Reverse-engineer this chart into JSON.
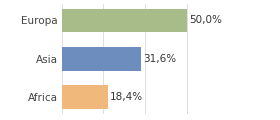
{
  "categories": [
    "Africa",
    "Asia",
    "Europa"
  ],
  "values": [
    18.4,
    31.6,
    50.0
  ],
  "bar_colors": [
    "#f0b87a",
    "#6e8dbf",
    "#a8bc8a"
  ],
  "labels": [
    "18,4%",
    "31,6%",
    "50,0%"
  ],
  "background_color": "#ffffff",
  "xlim": [
    0,
    67
  ],
  "bar_height": 0.62,
  "label_fontsize": 7.5,
  "tick_fontsize": 7.5
}
